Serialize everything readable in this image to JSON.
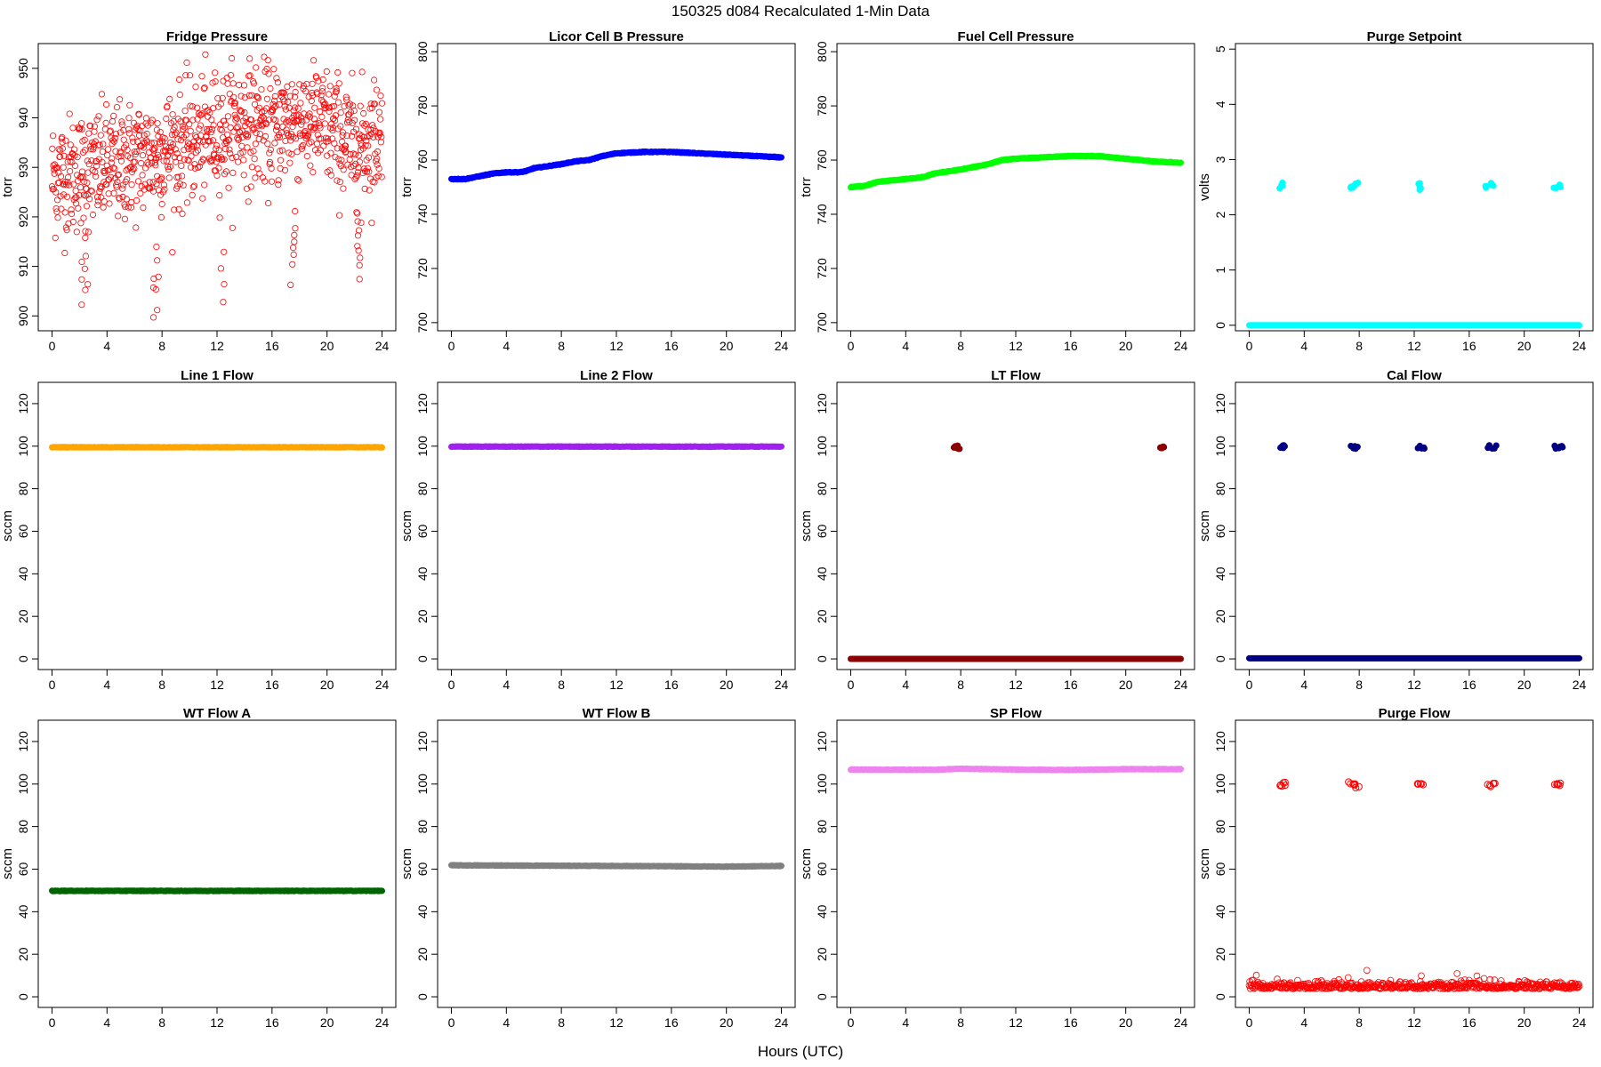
{
  "figure": {
    "title": "150325   d084   Recalculated 1-Min Data",
    "xlabel": "Hours (UTC)"
  },
  "chart_data": [
    {
      "type": "scatter",
      "title": "Fridge Pressure",
      "ylabel": "torr",
      "xlim": [
        -1,
        25
      ],
      "ylim": [
        897,
        955
      ],
      "xticks": [
        0,
        4,
        8,
        12,
        16,
        20,
        24
      ],
      "yticks": [
        900,
        910,
        920,
        930,
        940,
        950
      ],
      "color": "#ff0000",
      "marker": "open-circle",
      "base": [
        [
          0,
          928
        ],
        [
          4,
          930
        ],
        [
          8,
          933
        ],
        [
          12,
          937
        ],
        [
          14,
          939
        ],
        [
          16,
          938
        ],
        [
          18,
          940
        ],
        [
          20,
          938
        ],
        [
          22,
          934
        ],
        [
          24,
          937
        ]
      ],
      "scatter_sd": 6,
      "dips": [
        [
          2.3,
          901
        ],
        [
          2.5,
          905
        ],
        [
          7.5,
          898
        ],
        [
          7.7,
          904
        ],
        [
          12.4,
          902
        ],
        [
          17.5,
          906
        ],
        [
          17.6,
          911
        ],
        [
          22.3,
          907
        ],
        [
          22.4,
          909
        ]
      ]
    },
    {
      "type": "line",
      "title": "Licor Cell B Pressure",
      "ylabel": "torr",
      "xlim": [
        -1,
        25
      ],
      "ylim": [
        697,
        803
      ],
      "xticks": [
        0,
        4,
        8,
        12,
        16,
        20,
        24
      ],
      "yticks": [
        700,
        720,
        740,
        760,
        780,
        800
      ],
      "color": "#0000ff",
      "x": [
        0,
        1,
        2,
        3,
        4,
        5,
        5.5,
        6,
        8,
        9,
        10,
        11,
        12,
        14,
        16,
        18,
        20,
        22,
        24
      ],
      "y": [
        753,
        753,
        754,
        755,
        755.5,
        755.5,
        756,
        757,
        758.5,
        759.5,
        760,
        761.5,
        762.5,
        763,
        763,
        762.5,
        762,
        761.5,
        761
      ]
    },
    {
      "type": "line",
      "title": "Fuel Cell Pressure",
      "ylabel": "torr",
      "xlim": [
        -1,
        25
      ],
      "ylim": [
        697,
        803
      ],
      "xticks": [
        0,
        4,
        8,
        12,
        16,
        20,
        24
      ],
      "yticks": [
        700,
        720,
        740,
        760,
        780,
        800
      ],
      "color": "#00ff00",
      "x": [
        0,
        1,
        2,
        3,
        4,
        5,
        5.5,
        6,
        8,
        9,
        10,
        11,
        12,
        14,
        16,
        18,
        20,
        22,
        24
      ],
      "y": [
        750,
        750.5,
        752,
        752.5,
        753,
        753.5,
        754,
        755,
        756.5,
        757.5,
        758.5,
        760,
        760.5,
        761,
        761.5,
        761.5,
        760.5,
        759.5,
        759
      ]
    },
    {
      "type": "scatter",
      "title": "Purge Setpoint",
      "ylabel": "volts",
      "xlim": [
        -1,
        25
      ],
      "ylim": [
        -0.1,
        5.1
      ],
      "xticks": [
        0,
        4,
        8,
        12,
        16,
        20,
        24
      ],
      "yticks": [
        0,
        1,
        2,
        3,
        4,
        5
      ],
      "color": "#00ffff",
      "baseline": 0,
      "spikes": [
        [
          2.3,
          2.5
        ],
        [
          2.4,
          2.55
        ],
        [
          7.4,
          2.5
        ],
        [
          7.5,
          2.52
        ],
        [
          7.8,
          2.58
        ],
        [
          12.3,
          2.48
        ],
        [
          12.4,
          2.54
        ],
        [
          17.3,
          2.5
        ],
        [
          17.6,
          2.55
        ],
        [
          22.3,
          2.5
        ],
        [
          22.5,
          2.52
        ]
      ]
    },
    {
      "type": "line",
      "title": "Line 1 Flow",
      "ylabel": "sccm",
      "xlim": [
        -1,
        25
      ],
      "ylim": [
        -5,
        130
      ],
      "xticks": [
        0,
        4,
        8,
        12,
        16,
        20,
        24
      ],
      "yticks": [
        0,
        20,
        40,
        60,
        80,
        100,
        120
      ],
      "color": "#ffa500",
      "x": [
        0,
        24
      ],
      "y": [
        99.5,
        99.5
      ]
    },
    {
      "type": "line",
      "title": "Line 2 Flow",
      "ylabel": "sccm",
      "xlim": [
        -1,
        25
      ],
      "ylim": [
        -5,
        130
      ],
      "xticks": [
        0,
        4,
        8,
        12,
        16,
        20,
        24
      ],
      "yticks": [
        0,
        20,
        40,
        60,
        80,
        100,
        120
      ],
      "color": "#a020f0",
      "x": [
        0,
        24
      ],
      "y": [
        99.8,
        99.8
      ]
    },
    {
      "type": "scatter",
      "title": "LT Flow",
      "ylabel": "sccm",
      "xlim": [
        -1,
        25
      ],
      "ylim": [
        -5,
        130
      ],
      "xticks": [
        0,
        4,
        8,
        12,
        16,
        20,
        24
      ],
      "yticks": [
        0,
        20,
        40,
        60,
        80,
        100,
        120
      ],
      "color": "#8b0000",
      "baseline": 0,
      "spikes": [
        [
          7.6,
          99.5
        ],
        [
          7.7,
          99.6
        ],
        [
          7.8,
          99.5
        ],
        [
          22.6,
          99.5
        ],
        [
          22.7,
          99.4
        ],
        [
          22.8,
          99.5
        ]
      ]
    },
    {
      "type": "scatter",
      "title": "Cal Flow",
      "ylabel": "sccm",
      "xlim": [
        -1,
        25
      ],
      "ylim": [
        -5,
        130
      ],
      "xticks": [
        0,
        4,
        8,
        12,
        16,
        20,
        24
      ],
      "yticks": [
        0,
        20,
        40,
        60,
        80,
        100,
        120
      ],
      "color": "#000080",
      "baseline": 0.3,
      "spikes": [
        [
          2.4,
          99.6
        ],
        [
          2.6,
          99.6
        ],
        [
          7.5,
          99.6
        ],
        [
          7.9,
          99.6
        ],
        [
          12.4,
          99.6
        ],
        [
          12.6,
          99.6
        ],
        [
          17.4,
          99.6
        ],
        [
          17.8,
          99.6
        ],
        [
          22.4,
          99.6
        ],
        [
          22.6,
          99.6
        ]
      ]
    },
    {
      "type": "line",
      "title": "WT Flow A",
      "ylabel": "sccm",
      "xlim": [
        -1,
        25
      ],
      "ylim": [
        -5,
        130
      ],
      "xticks": [
        0,
        4,
        8,
        12,
        16,
        20,
        24
      ],
      "yticks": [
        0,
        20,
        40,
        60,
        80,
        100,
        120
      ],
      "color": "#006400",
      "x": [
        0,
        24
      ],
      "y": [
        49.8,
        49.8
      ]
    },
    {
      "type": "line",
      "title": "WT Flow B",
      "ylabel": "sccm",
      "xlim": [
        -1,
        25
      ],
      "ylim": [
        -5,
        130
      ],
      "xticks": [
        0,
        4,
        8,
        12,
        16,
        20,
        24
      ],
      "yticks": [
        0,
        20,
        40,
        60,
        80,
        100,
        120
      ],
      "color": "#808080",
      "x": [
        0,
        12,
        20,
        24
      ],
      "y": [
        61.8,
        61.5,
        61.2,
        61.5
      ]
    },
    {
      "type": "line",
      "title": "SP Flow",
      "ylabel": "sccm",
      "xlim": [
        -1,
        25
      ],
      "ylim": [
        -5,
        130
      ],
      "xticks": [
        0,
        4,
        8,
        12,
        16,
        20,
        24
      ],
      "yticks": [
        0,
        20,
        40,
        60,
        80,
        100,
        120
      ],
      "color": "#ee82ee",
      "x": [
        0,
        6,
        8,
        12,
        16,
        20,
        24
      ],
      "y": [
        106.8,
        106.7,
        107.2,
        106.8,
        106.6,
        107,
        107
      ]
    },
    {
      "type": "scatter",
      "title": "Purge Flow",
      "ylabel": "sccm",
      "xlim": [
        -1,
        25
      ],
      "ylim": [
        -5,
        130
      ],
      "xticks": [
        0,
        4,
        8,
        12,
        16,
        20,
        24
      ],
      "yticks": [
        0,
        20,
        40,
        60,
        80,
        100,
        120
      ],
      "color": "#ff0000",
      "marker": "open-circle",
      "baseline": 5,
      "scatter_sd": 1.5,
      "spikes": [
        [
          2.4,
          99.5
        ],
        [
          2.5,
          100
        ],
        [
          7.4,
          100.5
        ],
        [
          7.6,
          99.8
        ],
        [
          7.8,
          99
        ],
        [
          12.3,
          100.5
        ],
        [
          12.5,
          99.5
        ],
        [
          17.5,
          99.5
        ],
        [
          17.7,
          100.2
        ],
        [
          22.4,
          100
        ],
        [
          22.6,
          99.8
        ]
      ]
    }
  ]
}
